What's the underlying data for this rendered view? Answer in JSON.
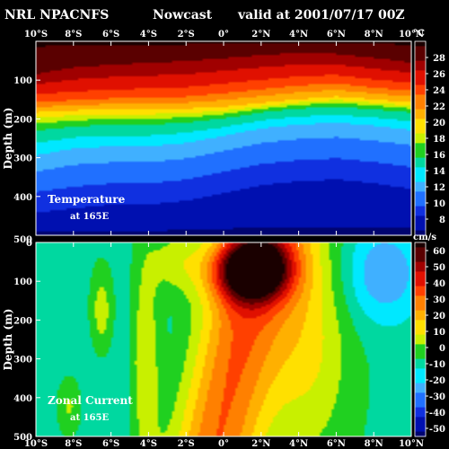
{
  "header": {
    "source": "NRL NPACNFS",
    "product": "Nowcast",
    "valid": "valid at 2001/07/17 00Z"
  },
  "colors": {
    "background": "#000000",
    "text": "#ffffff",
    "palette": [
      "#1a0000",
      "#5a0000",
      "#a00000",
      "#e01000",
      "#ff4000",
      "#ff8000",
      "#ffb000",
      "#ffe000",
      "#c8f000",
      "#20d020",
      "#00d8a0",
      "#00e8ff",
      "#40b0ff",
      "#2070ff",
      "#1030e0",
      "#0010b0",
      "#000470"
    ]
  },
  "chart_data": [
    {
      "type": "heatmap",
      "id": "temperature",
      "label_line1": "Temperature",
      "label_line2": "at 165E",
      "unit": "°C",
      "ylabel": "Depth (m)",
      "xlim": [
        -10,
        10
      ],
      "ylim": [
        0,
        500
      ],
      "y_inverted": true,
      "x_ticks": [
        -10,
        -8,
        -6,
        -4,
        -2,
        0,
        2,
        4,
        6,
        8,
        10
      ],
      "x_tick_labels": [
        "10°S",
        "8°S",
        "6°S",
        "4°S",
        "2°S",
        "0°",
        "2°N",
        "4°N",
        "6°N",
        "8°N",
        "10°N"
      ],
      "y_ticks": [
        100,
        200,
        300,
        400,
        500
      ],
      "y_tick_labels": [
        "100",
        "200",
        "300",
        "400",
        "500"
      ],
      "colorbar_labels": [
        "28",
        "26",
        "24",
        "22",
        "20",
        "18",
        "16",
        "14",
        "12",
        "10",
        "8"
      ],
      "colorbar_range": [
        6,
        30
      ],
      "x": [
        -10,
        -8,
        -6,
        -4,
        -2,
        0,
        2,
        4,
        6,
        8,
        10
      ],
      "isotherm_depths": [
        {
          "value": 28,
          "depth": [
            80,
            62,
            55,
            50,
            45,
            38,
            30,
            25,
            28,
            38,
            50
          ]
        },
        {
          "value": 24,
          "depth": [
            150,
            145,
            140,
            138,
            135,
            125,
            115,
            105,
            100,
            112,
            120
          ]
        },
        {
          "value": 20,
          "depth": [
            185,
            180,
            178,
            178,
            176,
            172,
            162,
            152,
            145,
            152,
            160
          ]
        },
        {
          "value": 16,
          "depth": [
            225,
            215,
            210,
            210,
            205,
            195,
            180,
            170,
            165,
            172,
            180
          ]
        },
        {
          "value": 12,
          "depth": [
            310,
            290,
            285,
            285,
            275,
            255,
            235,
            225,
            220,
            228,
            240
          ]
        },
        {
          "value": 8,
          "depth": [
            450,
            440,
            430,
            430,
            420,
            400,
            380,
            370,
            365,
            375,
            390
          ]
        }
      ]
    },
    {
      "type": "heatmap",
      "id": "zonal_current",
      "label_line1": "Zonal Current",
      "label_line2": "at 165E",
      "unit": "cm/s",
      "ylabel": "Depth (m)",
      "xlim": [
        -10,
        10
      ],
      "ylim": [
        0,
        500
      ],
      "y_inverted": true,
      "x_ticks": [
        -10,
        -8,
        -6,
        -4,
        -2,
        0,
        2,
        4,
        6,
        8,
        10
      ],
      "x_tick_labels": [
        "10°S",
        "8°S",
        "6°S",
        "4°S",
        "2°S",
        "0°",
        "2°N",
        "4°N",
        "6°N",
        "8°N",
        "10°N"
      ],
      "y_ticks": [
        0,
        100,
        200,
        300,
        400,
        500
      ],
      "y_tick_labels": [
        "0",
        "100",
        "200",
        "300",
        "400",
        "500"
      ],
      "colorbar_labels": [
        "60",
        "50",
        "40",
        "30",
        "20",
        "10",
        "0",
        "-10",
        "-20",
        "-30",
        "-40",
        "-50"
      ],
      "colorbar_range": [
        -55,
        65
      ],
      "features": [
        {
          "kind": "undercurrent_core",
          "x_center": 1.5,
          "depth_center": 70,
          "max_value": 65
        },
        {
          "kind": "eastward_jet",
          "x_range": [
            -1.5,
            6
          ],
          "depth_range": [
            0,
            500
          ],
          "value": 30
        },
        {
          "kind": "westward_flow_south",
          "x_range": [
            -10,
            -2
          ],
          "value": -10
        },
        {
          "kind": "westward_flow_north",
          "x_range": [
            6,
            10
          ],
          "value": -15
        }
      ]
    }
  ]
}
